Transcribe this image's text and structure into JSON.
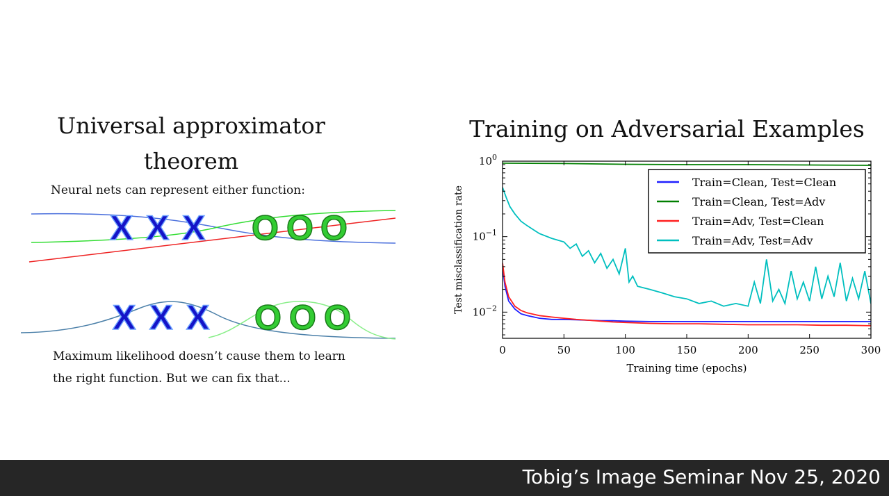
{
  "left": {
    "title_line1": "Universal approximator",
    "title_line2": "theorem",
    "subtitle": "Neural nets can represent either function:",
    "top_markers": [
      "X",
      "X",
      "X",
      "O",
      "O",
      "O"
    ],
    "bottom_markers": [
      "X",
      "X",
      "X",
      "O",
      "O",
      "O"
    ],
    "caption_line1": "Maximum likelihood doesn’t cause them to learn",
    "caption_line2": "the right function. But we can fix that...",
    "colors": {
      "x_fill": "#1414c8",
      "o_fill": "#33cc33",
      "blue_curve": "#4a6fdc",
      "green_curve": "#33dd33",
      "red_line": "#ee2222",
      "bump_blue": "#4a7fa8",
      "bump_green": "#88ee88"
    }
  },
  "chart_data": {
    "type": "line",
    "title": "Training on Adversarial Examples",
    "xlabel": "Training time (epochs)",
    "ylabel": "Test misclassification rate",
    "xlim": [
      0,
      300
    ],
    "ylim": [
      0.0045,
      1.0
    ],
    "yscale": "log",
    "xticks": [
      "0",
      "50",
      "100",
      "150",
      "200",
      "250",
      "300"
    ],
    "yticks": [
      "10^0",
      "10^-1",
      "10^-2"
    ],
    "legend_position": "top-right",
    "series": [
      {
        "name": "Train=Clean, Test=Clean",
        "color": "#1f1fff",
        "x": [
          0,
          2,
          5,
          10,
          15,
          20,
          30,
          40,
          50,
          60,
          70,
          80,
          90,
          100,
          120,
          140,
          160,
          180,
          200,
          220,
          240,
          260,
          280,
          300
        ],
        "y": [
          0.04,
          0.022,
          0.014,
          0.011,
          0.0095,
          0.009,
          0.0083,
          0.008,
          0.008,
          0.0079,
          0.0078,
          0.0077,
          0.0077,
          0.0076,
          0.0075,
          0.0075,
          0.0075,
          0.0075,
          0.0075,
          0.0075,
          0.0075,
          0.0075,
          0.0075,
          0.0075
        ]
      },
      {
        "name": "Train=Clean, Test=Adv",
        "color": "#007f00",
        "x": [
          0,
          50,
          100,
          150,
          200,
          250,
          300
        ],
        "y": [
          0.94,
          0.93,
          0.91,
          0.9,
          0.9,
          0.89,
          0.88
        ]
      },
      {
        "name": "Train=Adv, Test=Clean",
        "color": "#ff1f1f",
        "x": [
          0,
          2,
          5,
          10,
          15,
          20,
          30,
          40,
          50,
          60,
          70,
          80,
          90,
          100,
          120,
          140,
          160,
          180,
          200,
          220,
          240,
          260,
          280,
          300
        ],
        "y": [
          0.045,
          0.025,
          0.016,
          0.012,
          0.0105,
          0.0098,
          0.009,
          0.0086,
          0.0083,
          0.008,
          0.0078,
          0.0076,
          0.0074,
          0.0073,
          0.0071,
          0.007,
          0.007,
          0.0069,
          0.0068,
          0.0068,
          0.0068,
          0.0067,
          0.0067,
          0.0066
        ]
      },
      {
        "name": "Train=Adv, Test=Adv",
        "color": "#00bfbf",
        "x": [
          0,
          3,
          6,
          10,
          15,
          20,
          30,
          40,
          50,
          55,
          60,
          65,
          70,
          75,
          80,
          85,
          90,
          95,
          100,
          103,
          106,
          110,
          120,
          130,
          140,
          150,
          160,
          170,
          180,
          190,
          200,
          205,
          210,
          215,
          220,
          225,
          230,
          235,
          240,
          245,
          250,
          255,
          260,
          265,
          270,
          275,
          280,
          285,
          290,
          295,
          300
        ],
        "y": [
          0.45,
          0.33,
          0.25,
          0.2,
          0.16,
          0.14,
          0.11,
          0.095,
          0.085,
          0.07,
          0.08,
          0.055,
          0.065,
          0.045,
          0.06,
          0.038,
          0.05,
          0.032,
          0.07,
          0.025,
          0.03,
          0.022,
          0.02,
          0.018,
          0.016,
          0.015,
          0.013,
          0.014,
          0.012,
          0.013,
          0.012,
          0.025,
          0.013,
          0.05,
          0.014,
          0.02,
          0.013,
          0.035,
          0.015,
          0.025,
          0.014,
          0.04,
          0.015,
          0.03,
          0.016,
          0.045,
          0.014,
          0.028,
          0.015,
          0.035,
          0.013
        ]
      }
    ]
  },
  "footer": {
    "text": "Tobig’s Image Seminar Nov 25, 2020"
  }
}
